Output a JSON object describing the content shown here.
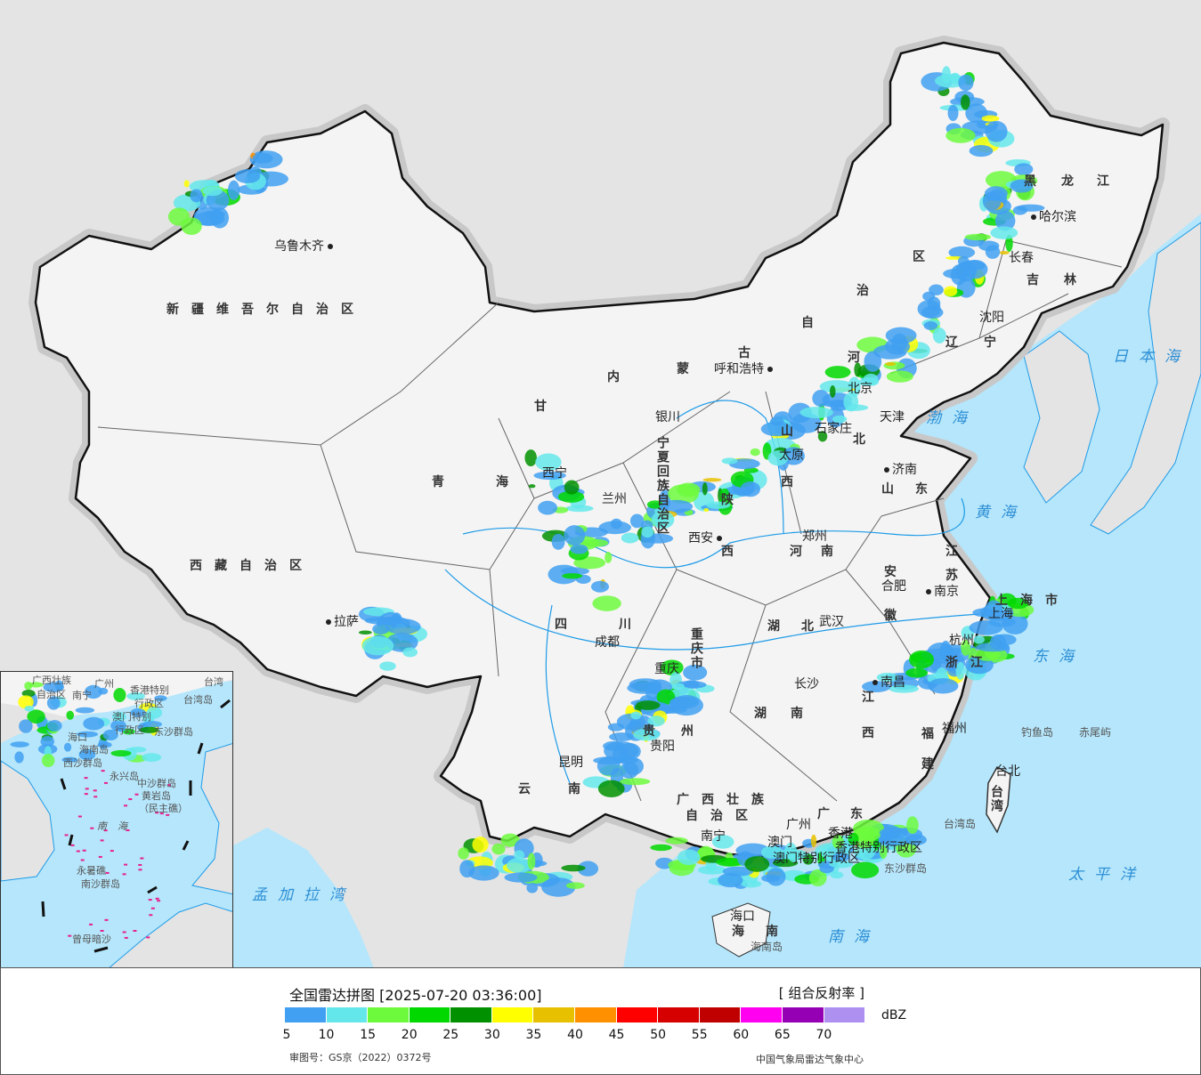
{
  "title": "全国雷达拼图 [2025-07-20 03:36:00]",
  "product": "[ 组合反射率 ]",
  "unit": "dBZ",
  "legend": {
    "colors": [
      "#41a0f1",
      "#64e7eb",
      "#6dfa3d",
      "#00d800",
      "#019000",
      "#ffff00",
      "#e7c000",
      "#ff9000",
      "#ff0000",
      "#d60000",
      "#c00000",
      "#ff00f0",
      "#9600b4",
      "#ad90f0"
    ],
    "ticks": [
      "5",
      "10",
      "15",
      "20",
      "25",
      "30",
      "35",
      "40",
      "45",
      "50",
      "55",
      "60",
      "65",
      "70"
    ]
  },
  "approval_number": "审图号：GS京（2022）0372号",
  "source": "中国气象局雷达气象中心",
  "colors": {
    "sea": "#b5e6fb",
    "land_foreign": "#e4e4e4",
    "land_china": "#f4f4f4",
    "river": "#1e9be8"
  },
  "provinces": [
    "新疆维吾尔自治区",
    "西藏自治区",
    "青",
    "海",
    "甘",
    "内",
    "蒙",
    "古",
    "自",
    "治",
    "区",
    "黑",
    "龙",
    "江",
    "吉",
    "林",
    "辽",
    "宁",
    "河",
    "北",
    "山",
    "东",
    "江",
    "苏",
    "安",
    "徽",
    "河",
    "南",
    "湖",
    "北",
    "湖",
    "南",
    "江",
    "西",
    "浙",
    "江",
    "福",
    "建",
    "广",
    "东",
    "广西壮族",
    "自治区",
    "云",
    "南",
    "贵",
    "州",
    "四",
    "川",
    "重庆市",
    "陕",
    "西",
    "山",
    "西",
    "宁夏回族自治区",
    "海",
    "南",
    "台湾",
    "上海市"
  ],
  "cities": [
    "乌鲁木齐",
    "拉萨",
    "呼和浩特",
    "银川",
    "西宁",
    "兰州",
    "西安",
    "成都",
    "重庆",
    "贵阳",
    "昆明",
    "南宁",
    "海口",
    "广州",
    "长沙",
    "武汉",
    "郑州",
    "合肥",
    "南京",
    "杭州",
    "南昌",
    "福州",
    "台北",
    "济南",
    "石家庄",
    "太原",
    "北京",
    "天津",
    "沈阳",
    "长春",
    "哈尔滨",
    "上海",
    "澳门",
    "香港",
    "香港特别行政区",
    "澳门特别行政区"
  ],
  "seas": [
    "日本海",
    "黄海",
    "东海",
    "太平洋",
    "南海",
    "孟加拉湾",
    "渤海"
  ],
  "islands": [
    "台湾岛",
    "钓鱼岛",
    "赤尾屿",
    "海南岛",
    "东沙群岛"
  ],
  "inset": {
    "labels": [
      "广西壮族",
      "自治区",
      "南宁",
      "广州",
      "香港特别",
      "行政区",
      "台湾岛",
      "澳门特别",
      "行政区",
      "东沙群岛",
      "海口",
      "海南岛",
      "西沙群岛",
      "永兴岛",
      "中沙群岛",
      "黄岩岛",
      "（民主礁）",
      "南海",
      "永暑礁",
      "南沙群岛",
      "曾母暗沙",
      "台湾"
    ]
  }
}
